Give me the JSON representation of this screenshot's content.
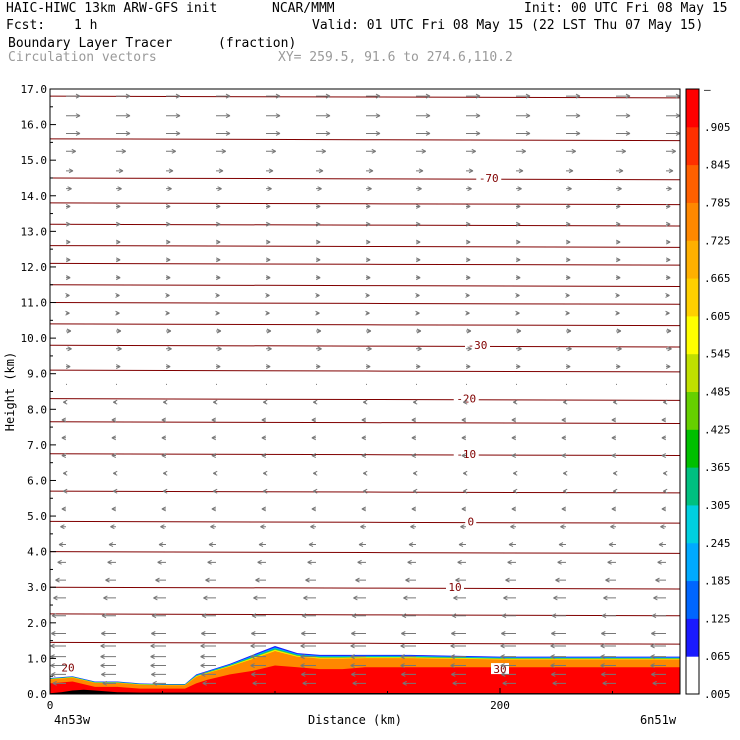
{
  "header": {
    "model": "HAIC-HIWC 13km ARW-GFS init",
    "institution": "NCAR/MMM",
    "init": "Init: 00 UTC Fri 08 May 15",
    "fcst_label": "Fcst:",
    "fcst_value": "1 h",
    "valid": "Valid: 01 UTC Fri 08 May 15 (22 LST Thu 07 May 15)",
    "field_name": "Boundary Layer Tracer",
    "field_unit": "(fraction)",
    "overlay": "Circulation vectors",
    "cross_section": "XY= 259.5, 91.6 to 274.6,110.2"
  },
  "colors": {
    "contour": "#800000",
    "vector": "#777777",
    "tracer_scale": [
      "#ffffff",
      "#1a1aff",
      "#0066ff",
      "#00aaff",
      "#00d0e0",
      "#00c080",
      "#00c000",
      "#66d000",
      "#c0e000",
      "#ffff00",
      "#ffd000",
      "#ffb000",
      "#ff8800",
      "#ff6000",
      "#ff3000",
      "#ff0000"
    ]
  },
  "chart_data": {
    "type": "heatmap",
    "title": "Boundary Layer Tracer (fraction)",
    "xlabel": "Distance (km)",
    "ylabel": "Height (km)",
    "xlim": [
      0,
      280
    ],
    "ylim": [
      0,
      17
    ],
    "x_ticks": [
      "0",
      "200"
    ],
    "x_tick_values": [
      0,
      200
    ],
    "x_endpoints": {
      "left": "4n53w",
      "right": "6n51w"
    },
    "y_ticks": [
      "0.0",
      "1.0",
      "2.0",
      "3.0",
      "4.0",
      "5.0",
      "6.0",
      "7.0",
      "8.0",
      "9.0",
      "10.0",
      "11.0",
      "12.0",
      "13.0",
      "14.0",
      "15.0",
      "16.0",
      "17.0"
    ],
    "colorbar_labels": [
      "–",
      ".905",
      ".845",
      ".785",
      ".725",
      ".665",
      ".605",
      ".545",
      ".485",
      ".425",
      ".365",
      ".305",
      ".245",
      ".185",
      ".125",
      ".065",
      ".005"
    ],
    "temperature_contour_labels": [
      {
        "label": "-70",
        "x": 195,
        "y": 14.5
      },
      {
        "label": "-30",
        "x": 190,
        "y": 9.8
      },
      {
        "label": "-20",
        "x": 185,
        "y": 8.3
      },
      {
        "label": "-10",
        "x": 185,
        "y": 6.75
      },
      {
        "label": "0",
        "x": 187,
        "y": 4.85
      },
      {
        "label": "10",
        "x": 180,
        "y": 3.0
      },
      {
        "label": "20",
        "x": 8,
        "y": 0.75
      },
      {
        "label": "30",
        "x": 200,
        "y": 0.7
      }
    ],
    "temperature_contour_heights": [
      16.8,
      15.6,
      14.5,
      13.8,
      13.2,
      12.6,
      12.1,
      11.5,
      11.0,
      10.4,
      9.8,
      9.1,
      8.3,
      7.65,
      6.75,
      5.7,
      4.85,
      4.0,
      3.0,
      2.25,
      1.45
    ],
    "tracer_profile": {
      "x": [
        0,
        10,
        20,
        30,
        40,
        50,
        60,
        65,
        70,
        80,
        90,
        100,
        110,
        120,
        130,
        140,
        160,
        200,
        240,
        280
      ],
      "top_km": [
        0.45,
        0.5,
        0.35,
        0.35,
        0.3,
        0.28,
        0.28,
        0.55,
        0.65,
        0.85,
        1.1,
        1.35,
        1.15,
        1.1,
        1.1,
        1.1,
        1.1,
        1.05,
        1.05,
        1.05
      ],
      "saturated_top_km": [
        0.3,
        0.35,
        0.2,
        0.2,
        0.15,
        0.15,
        0.15,
        0.3,
        0.4,
        0.55,
        0.65,
        0.8,
        0.75,
        0.7,
        0.7,
        0.75,
        0.75,
        0.75,
        0.75,
        0.75
      ]
    },
    "terrain_km": [
      0.02,
      0.05,
      0.1,
      0.12,
      0.1,
      0.05,
      0.04,
      0.04,
      0.03,
      0.02
    ],
    "terrain_x": [
      0,
      5,
      10,
      15,
      20,
      30,
      40,
      60,
      100,
      280
    ],
    "wind_rows": [
      {
        "z": 16.8,
        "u": 1.0
      },
      {
        "z": 16.25,
        "u": 1.0
      },
      {
        "z": 15.75,
        "u": 1.0
      },
      {
        "z": 15.25,
        "u": 0.7
      },
      {
        "z": 14.7,
        "u": 0.5
      },
      {
        "z": 14.2,
        "u": 0.4
      },
      {
        "z": 13.7,
        "u": 0.3
      },
      {
        "z": 13.2,
        "u": 0.3
      },
      {
        "z": 12.7,
        "u": 0.3
      },
      {
        "z": 12.2,
        "u": 0.3
      },
      {
        "z": 11.7,
        "u": 0.3
      },
      {
        "z": 11.2,
        "u": 0.25
      },
      {
        "z": 10.7,
        "u": 0.25
      },
      {
        "z": 10.2,
        "u": 0.35
      },
      {
        "z": 9.7,
        "u": 0.4
      },
      {
        "z": 9.2,
        "u": 0.3
      },
      {
        "z": 8.7,
        "u": 0.1
      },
      {
        "z": 8.2,
        "u": -0.2
      },
      {
        "z": 7.7,
        "u": -0.3
      },
      {
        "z": 7.2,
        "u": -0.3
      },
      {
        "z": 6.7,
        "u": -0.3
      },
      {
        "z": 6.2,
        "u": -0.2
      },
      {
        "z": 5.7,
        "u": -0.2
      },
      {
        "z": 5.2,
        "u": -0.3
      },
      {
        "z": 4.7,
        "u": -0.4
      },
      {
        "z": 4.2,
        "u": -0.5
      },
      {
        "z": 3.7,
        "u": -0.6
      },
      {
        "z": 3.2,
        "u": -0.75
      },
      {
        "z": 2.7,
        "u": -0.9
      },
      {
        "z": 2.2,
        "u": -1.0
      },
      {
        "z": 1.7,
        "u": -1.05
      },
      {
        "z": 1.35,
        "u": -1.1
      },
      {
        "z": 1.05,
        "u": -1.1
      },
      {
        "z": 0.8,
        "u": -1.1
      },
      {
        "z": 0.55,
        "u": -1.05
      },
      {
        "z": 0.3,
        "u": -0.95
      }
    ]
  }
}
